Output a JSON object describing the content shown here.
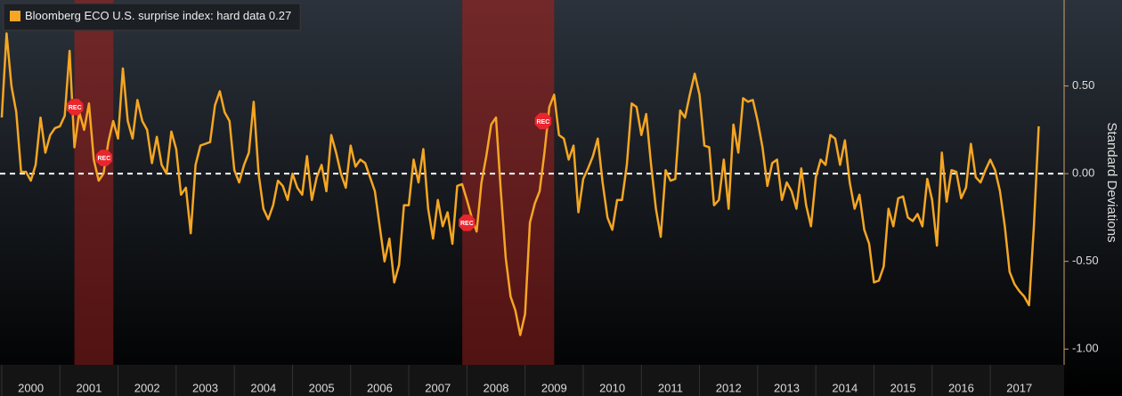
{
  "chart_data": {
    "type": "line",
    "legend_position": "top-left",
    "y_label": "Standard Deviations",
    "series": [
      {
        "name": "Bloomberg ECO U.S. surprise index: hard data",
        "color": "#f5a623",
        "values": [
          0.32,
          0.8,
          0.5,
          0.35,
          0.01,
          0.01,
          -0.04,
          0.05,
          0.32,
          0.12,
          0.22,
          0.26,
          0.27,
          0.33,
          0.7,
          0.15,
          0.35,
          0.25,
          0.4,
          0.08,
          -0.04,
          0.0,
          0.18,
          0.3,
          0.2,
          0.6,
          0.3,
          0.2,
          0.42,
          0.3,
          0.25,
          0.06,
          0.21,
          0.05,
          0.0,
          0.24,
          0.14,
          -0.12,
          -0.08,
          -0.34,
          0.05,
          0.16,
          0.17,
          0.18,
          0.39,
          0.47,
          0.35,
          0.3,
          0.02,
          -0.05,
          0.05,
          0.12,
          0.41,
          0.0,
          -0.2,
          -0.26,
          -0.18,
          -0.04,
          -0.07,
          -0.15,
          0.0,
          -0.08,
          -0.12,
          0.1,
          -0.15,
          -0.02,
          0.05,
          -0.1,
          0.22,
          0.12,
          0.0,
          -0.08,
          0.16,
          0.04,
          0.08,
          0.06,
          -0.02,
          -0.1,
          -0.3,
          -0.5,
          -0.37,
          -0.62,
          -0.52,
          -0.18,
          -0.18,
          0.08,
          -0.05,
          0.14,
          -0.2,
          -0.37,
          -0.15,
          -0.3,
          -0.22,
          -0.4,
          -0.07,
          -0.06,
          -0.15,
          -0.25,
          -0.33,
          -0.05,
          0.1,
          0.28,
          0.32,
          -0.1,
          -0.48,
          -0.7,
          -0.78,
          -0.92,
          -0.8,
          -0.28,
          -0.17,
          -0.1,
          0.12,
          0.38,
          0.45,
          0.22,
          0.2,
          0.08,
          0.16,
          -0.22,
          -0.03,
          0.03,
          0.1,
          0.2,
          -0.05,
          -0.25,
          -0.32,
          -0.15,
          -0.15,
          0.05,
          0.4,
          0.38,
          0.22,
          0.34,
          0.05,
          -0.2,
          -0.36,
          0.02,
          -0.04,
          -0.03,
          0.36,
          0.32,
          0.45,
          0.57,
          0.45,
          0.16,
          0.15,
          -0.18,
          -0.15,
          0.08,
          -0.2,
          0.28,
          0.12,
          0.43,
          0.41,
          0.42,
          0.3,
          0.15,
          -0.07,
          0.06,
          0.08,
          -0.15,
          -0.05,
          -0.1,
          -0.2,
          0.03,
          -0.18,
          -0.3,
          -0.02,
          0.08,
          0.05,
          0.22,
          0.2,
          0.05,
          0.19,
          -0.05,
          -0.2,
          -0.12,
          -0.32,
          -0.4,
          -0.62,
          -0.61,
          -0.53,
          -0.2,
          -0.3,
          -0.14,
          -0.13,
          -0.25,
          -0.27,
          -0.23,
          -0.3,
          -0.03,
          -0.15,
          -0.41,
          0.12,
          -0.16,
          0.02,
          0.01,
          -0.14,
          -0.08,
          0.17,
          -0.02,
          -0.05,
          0.02,
          0.08,
          0.02,
          -0.1,
          -0.3,
          -0.56,
          -0.63,
          -0.67,
          -0.7,
          -0.75,
          -0.3,
          0.27
        ]
      }
    ],
    "x": [
      2000,
      2000.083,
      2000.167,
      2000.25,
      2000.333,
      2000.417,
      2000.5,
      2000.583,
      2000.667,
      2000.75,
      2000.833,
      2000.917,
      2001,
      2001.083,
      2001.167,
      2001.25,
      2001.333,
      2001.417,
      2001.5,
      2001.583,
      2001.667,
      2001.75,
      2001.833,
      2001.917,
      2002,
      2002.083,
      2002.167,
      2002.25,
      2002.333,
      2002.417,
      2002.5,
      2002.583,
      2002.667,
      2002.75,
      2002.833,
      2002.917,
      2003,
      2003.083,
      2003.167,
      2003.25,
      2003.333,
      2003.417,
      2003.5,
      2003.583,
      2003.667,
      2003.75,
      2003.833,
      2003.917,
      2004,
      2004.083,
      2004.167,
      2004.25,
      2004.333,
      2004.417,
      2004.5,
      2004.583,
      2004.667,
      2004.75,
      2004.833,
      2004.917,
      2005,
      2005.083,
      2005.167,
      2005.25,
      2005.333,
      2005.417,
      2005.5,
      2005.583,
      2005.667,
      2005.75,
      2005.833,
      2005.917,
      2006,
      2006.083,
      2006.167,
      2006.25,
      2006.333,
      2006.417,
      2006.5,
      2006.583,
      2006.667,
      2006.75,
      2006.833,
      2006.917,
      2007,
      2007.083,
      2007.167,
      2007.25,
      2007.333,
      2007.417,
      2007.5,
      2007.583,
      2007.667,
      2007.75,
      2007.833,
      2007.917,
      2008,
      2008.083,
      2008.167,
      2008.25,
      2008.333,
      2008.417,
      2008.5,
      2008.583,
      2008.667,
      2008.75,
      2008.833,
      2008.917,
      2009,
      2009.083,
      2009.167,
      2009.25,
      2009.333,
      2009.417,
      2009.5,
      2009.583,
      2009.667,
      2009.75,
      2009.833,
      2009.917,
      2010,
      2010.083,
      2010.167,
      2010.25,
      2010.333,
      2010.417,
      2010.5,
      2010.583,
      2010.667,
      2010.75,
      2010.833,
      2010.917,
      2011,
      2011.083,
      2011.167,
      2011.25,
      2011.333,
      2011.417,
      2011.5,
      2011.583,
      2011.667,
      2011.75,
      2011.833,
      2011.917,
      2012,
      2012.083,
      2012.167,
      2012.25,
      2012.333,
      2012.417,
      2012.5,
      2012.583,
      2012.667,
      2012.75,
      2012.833,
      2012.917,
      2013,
      2013.083,
      2013.167,
      2013.25,
      2013.333,
      2013.417,
      2013.5,
      2013.583,
      2013.667,
      2013.75,
      2013.833,
      2013.917,
      2014,
      2014.083,
      2014.167,
      2014.25,
      2014.333,
      2014.417,
      2014.5,
      2014.583,
      2014.667,
      2014.75,
      2014.833,
      2014.917,
      2015,
      2015.083,
      2015.167,
      2015.25,
      2015.333,
      2015.417,
      2015.5,
      2015.583,
      2015.667,
      2015.75,
      2015.833,
      2015.917,
      2016,
      2016.083,
      2016.167,
      2016.25,
      2016.333,
      2016.417,
      2016.5,
      2016.583,
      2016.667,
      2016.75,
      2016.833,
      2016.917,
      2017,
      2017.083,
      2017.167,
      2017.25,
      2017.333,
      2017.417,
      2017.5,
      2017.583,
      2017.667,
      2017.75,
      2017.833
    ],
    "xlim": [
      1999.97,
      2018.27
    ],
    "xticks": [
      2000,
      2001,
      2002,
      2003,
      2004,
      2005,
      2006,
      2007,
      2008,
      2009,
      2010,
      2011,
      2012,
      2013,
      2014,
      2015,
      2016,
      2017
    ],
    "ylim": [
      -1.09,
      0.99
    ],
    "yticks": [
      {
        "value": 0.5,
        "label": "0.50"
      },
      {
        "value": 0,
        "label": "0.00"
      },
      {
        "value": -0.5,
        "label": "-0.50"
      },
      {
        "value": -1,
        "label": "-1.00"
      }
    ],
    "hline": 0,
    "recessions": [
      [
        2001.25,
        2001.92
      ],
      [
        2007.92,
        2009.5
      ]
    ],
    "annotations": [
      {
        "text": "REC",
        "x": 2001.26,
        "y": 0.38
      },
      {
        "text": "REC",
        "x": 2001.76,
        "y": 0.09
      },
      {
        "text": "REC",
        "x": 2008.0,
        "y": -0.28
      },
      {
        "text": "REC",
        "x": 2009.31,
        "y": 0.3
      }
    ]
  }
}
